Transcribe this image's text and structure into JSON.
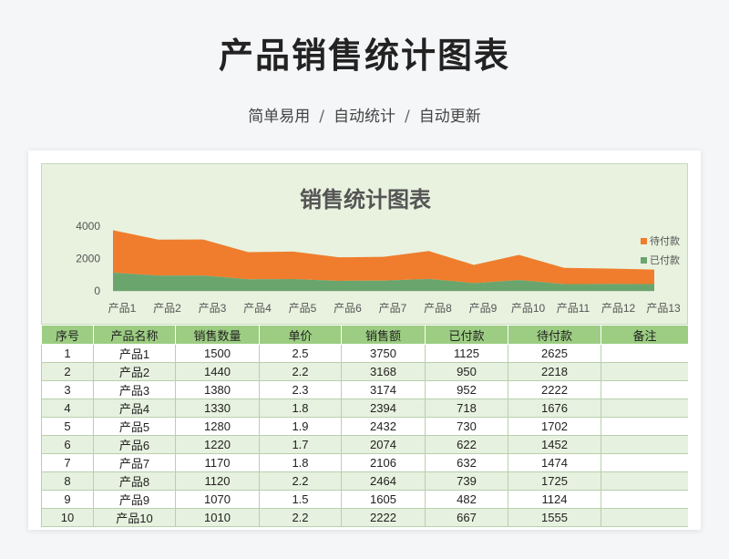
{
  "header": {
    "title": "产品销售统计图表",
    "subtitle_items": [
      "简单易用",
      "自动统计",
      "自动更新"
    ],
    "separator": "/"
  },
  "chart_data": {
    "type": "area",
    "title": "销售统计图表",
    "categories": [
      "产品1",
      "产品2",
      "产品3",
      "产品4",
      "产品5",
      "产品6",
      "产品7",
      "产品8",
      "产品9",
      "产品10",
      "产品11",
      "产品12",
      "产品13"
    ],
    "series": [
      {
        "name": "已付款",
        "color": "#6aa56e",
        "values": [
          1125,
          950,
          952,
          718,
          730,
          622,
          632,
          739,
          482,
          667,
          420,
          430,
          420
        ]
      },
      {
        "name": "待付款",
        "color": "#ef7d2d",
        "values": [
          2625,
          2218,
          2222,
          1676,
          1702,
          1452,
          1474,
          1725,
          1124,
          1555,
          1000,
          950,
          900
        ]
      }
    ],
    "stacked": true,
    "y_ticks": [
      "4000",
      "2000",
      "0"
    ],
    "ylim": [
      0,
      4000
    ],
    "legend": "right",
    "legend_order": [
      "待付款",
      "已付款"
    ]
  },
  "table": {
    "headers": [
      "序号",
      "产品名称",
      "销售数量",
      "单价",
      "销售额",
      "已付款",
      "待付款",
      "备注"
    ],
    "rows": [
      [
        "1",
        "产品1",
        "1500",
        "2.5",
        "3750",
        "1125",
        "2625",
        ""
      ],
      [
        "2",
        "产品2",
        "1440",
        "2.2",
        "3168",
        "950",
        "2218",
        ""
      ],
      [
        "3",
        "产品3",
        "1380",
        "2.3",
        "3174",
        "952",
        "2222",
        ""
      ],
      [
        "4",
        "产品4",
        "1330",
        "1.8",
        "2394",
        "718",
        "1676",
        ""
      ],
      [
        "5",
        "产品5",
        "1280",
        "1.9",
        "2432",
        "730",
        "1702",
        ""
      ],
      [
        "6",
        "产品6",
        "1220",
        "1.7",
        "2074",
        "622",
        "1452",
        ""
      ],
      [
        "7",
        "产品7",
        "1170",
        "1.8",
        "2106",
        "632",
        "1474",
        ""
      ],
      [
        "8",
        "产品8",
        "1120",
        "2.2",
        "2464",
        "739",
        "1725",
        ""
      ],
      [
        "9",
        "产品9",
        "1070",
        "1.5",
        "1605",
        "482",
        "1124",
        ""
      ],
      [
        "10",
        "产品10",
        "1010",
        "2.2",
        "2222",
        "667",
        "1555",
        ""
      ]
    ]
  }
}
